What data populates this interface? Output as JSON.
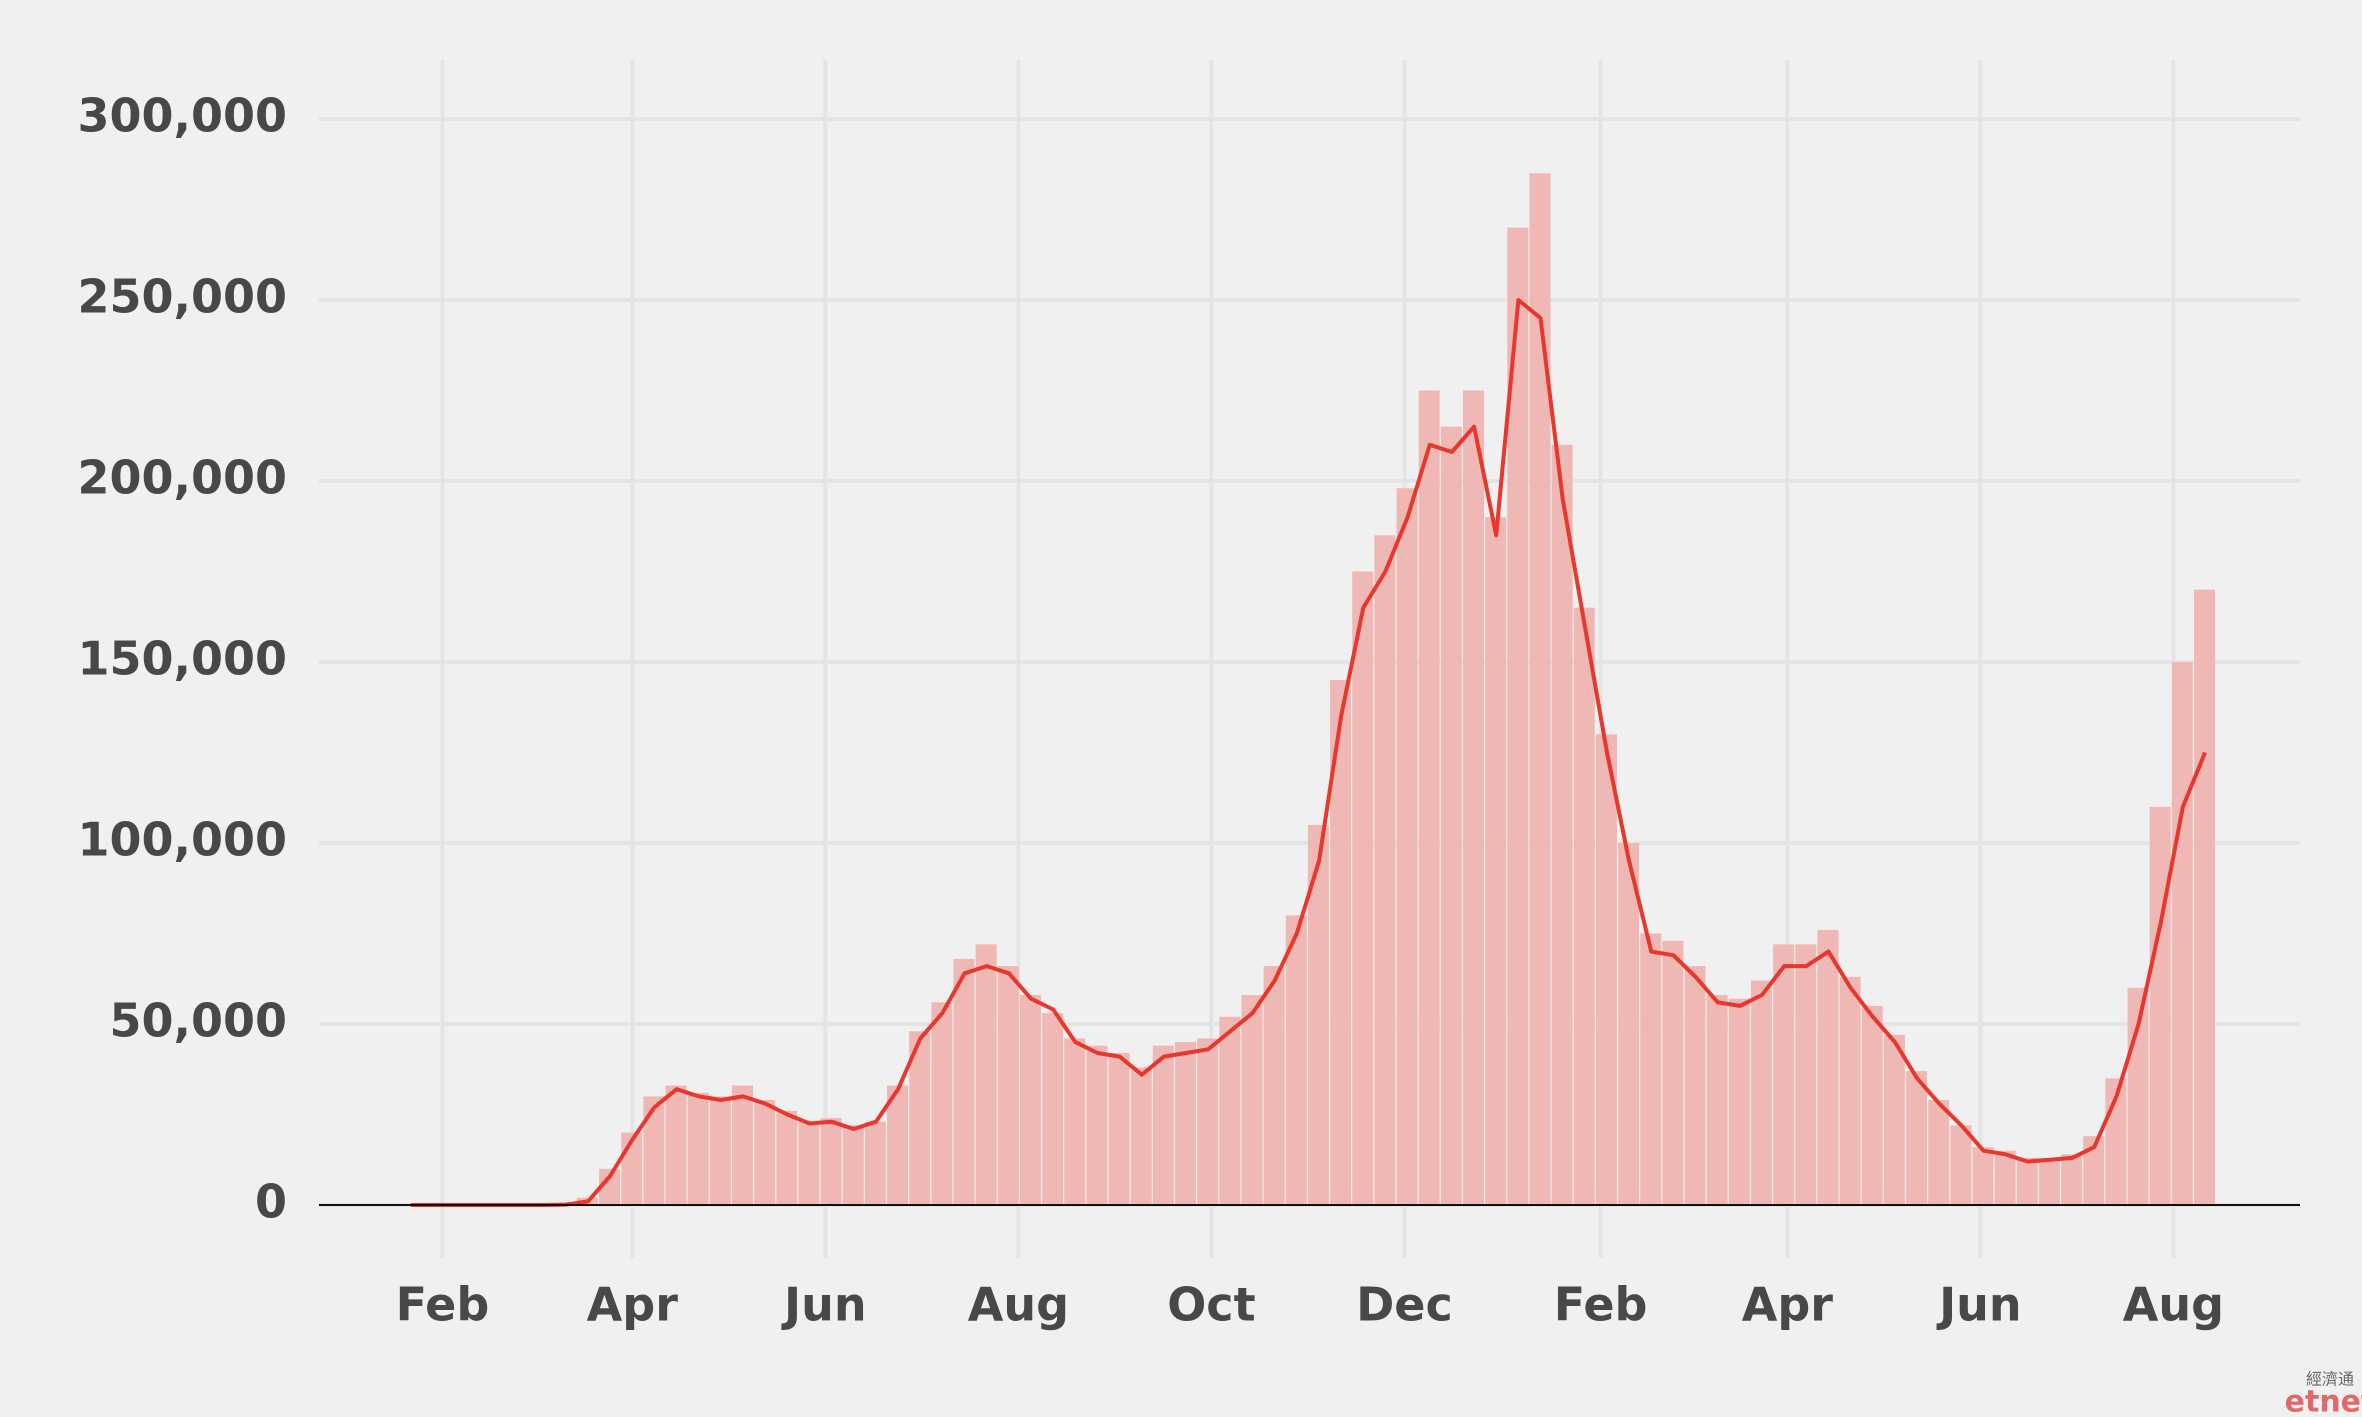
{
  "chart_data": {
    "type": "bar",
    "x": [
      21,
      28,
      35,
      42,
      49,
      56,
      63,
      70,
      77,
      84,
      91,
      98,
      105,
      112,
      119,
      126,
      133,
      140,
      147,
      154,
      161,
      168,
      175,
      182,
      189,
      196,
      203,
      210,
      217,
      224,
      231,
      238,
      245,
      252,
      259,
      266,
      273,
      280,
      287,
      294,
      301,
      308,
      315,
      322,
      329,
      336,
      343,
      350,
      357,
      364,
      371,
      378,
      385,
      392,
      399,
      406,
      413,
      420,
      427,
      434,
      441,
      448,
      455,
      462,
      469,
      476,
      483,
      490,
      497,
      504,
      511,
      518,
      525,
      532,
      539,
      546,
      553,
      560,
      567,
      574,
      581,
      588
    ],
    "series": [
      {
        "type": "bar",
        "color": "#f0b8b5",
        "values": [
          0,
          0,
          0,
          0,
          0,
          0,
          0,
          200,
          2000,
          10000,
          20000,
          30000,
          33000,
          31000,
          30000,
          33000,
          29000,
          26000,
          23000,
          24000,
          22000,
          23000,
          33000,
          48000,
          56000,
          68000,
          72000,
          66000,
          58000,
          53000,
          46000,
          44000,
          42000,
          38000,
          44000,
          45000,
          46000,
          52000,
          58000,
          66000,
          80000,
          105000,
          145000,
          175000,
          185000,
          198000,
          225000,
          215000,
          225000,
          190000,
          270000,
          285000,
          210000,
          165000,
          130000,
          100000,
          75000,
          73000,
          66000,
          58000,
          57000,
          62000,
          72000,
          72000,
          76000,
          63000,
          55000,
          47000,
          37000,
          29000,
          22000,
          16000,
          15000,
          13000,
          13000,
          14000,
          19000,
          35000,
          60000,
          110000,
          150000,
          170000
        ]
      },
      {
        "type": "line",
        "color": "#e8372c",
        "values": [
          0,
          0,
          0,
          0,
          0,
          0,
          0,
          100,
          1000,
          8000,
          18000,
          27000,
          32000,
          30000,
          29000,
          30000,
          28000,
          25000,
          22500,
          23000,
          21000,
          23000,
          32000,
          46000,
          53000,
          64000,
          66000,
          64000,
          57000,
          54000,
          45000,
          42000,
          41000,
          36000,
          41000,
          42000,
          43000,
          48000,
          53000,
          62000,
          75000,
          95000,
          135000,
          165000,
          175000,
          190000,
          210000,
          208000,
          215000,
          185000,
          250000,
          245000,
          195000,
          160000,
          125000,
          95000,
          70000,
          69000,
          63000,
          56000,
          55000,
          58000,
          66000,
          66000,
          70000,
          60000,
          52000,
          45000,
          35000,
          28000,
          22000,
          15000,
          14000,
          12000,
          12500,
          13000,
          16000,
          30000,
          50000,
          78000,
          110000,
          125000
        ]
      }
    ],
    "xlim": [
      -8,
      618
    ],
    "xticks": [
      {
        "value": 31,
        "label": "Feb"
      },
      {
        "value": 91,
        "label": "Apr"
      },
      {
        "value": 152,
        "label": "Jun"
      },
      {
        "value": 213,
        "label": "Aug"
      },
      {
        "value": 274,
        "label": "Oct"
      },
      {
        "value": 335,
        "label": "Dec"
      },
      {
        "value": 397,
        "label": "Feb"
      },
      {
        "value": 456,
        "label": "Apr"
      },
      {
        "value": 517,
        "label": "Jun"
      },
      {
        "value": 578,
        "label": "Aug"
      }
    ],
    "ylim": [
      0,
      300000
    ],
    "yticks": [
      0,
      {
        "value": 50000,
        "label": "50,000"
      },
      {
        "value": 100000,
        "label": "100,000"
      },
      {
        "value": 150000,
        "label": "150,000"
      },
      {
        "value": 200000,
        "label": "200,000"
      },
      {
        "value": 250000,
        "label": "250,000"
      },
      {
        "value": 300000,
        "label": "300,000"
      }
    ],
    "grid": true,
    "watermark": {
      "top": "經濟通",
      "bottom": "etnet"
    }
  }
}
